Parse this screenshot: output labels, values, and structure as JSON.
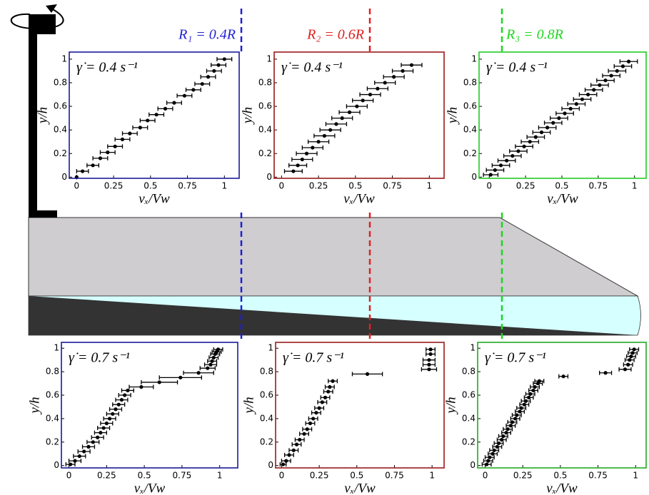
{
  "diagram": {
    "radii": [
      {
        "label": "R₁ = 0.4R",
        "color": "#1f1fd6"
      },
      {
        "label": "R₂ = 0.6R",
        "color": "#e0201f"
      },
      {
        "label": "R₃ = 0.8R",
        "color": "#1fd61f"
      }
    ]
  },
  "chart_data": [
    {
      "type": "scatter",
      "annotation": "γ̇ = 0.4 s⁻¹",
      "xlabel": "vₓ/Vw",
      "ylabel": "y/h",
      "color": "#1a1a9a",
      "xlim": [
        -0.05,
        1.1
      ],
      "ylim": [
        -0.01,
        1.06
      ],
      "xticks": [
        0,
        0.25,
        0.5,
        0.75,
        1
      ],
      "yticks": [
        0,
        0.2,
        0.4,
        0.6,
        0.8,
        1
      ],
      "x": [
        0,
        0.04,
        0.11,
        0.16,
        0.21,
        0.26,
        0.31,
        0.36,
        0.43,
        0.48,
        0.54,
        0.6,
        0.66,
        0.73,
        0.79,
        0.85,
        0.89,
        0.93,
        0.96,
        1
      ],
      "y": [
        0,
        0.05,
        0.1,
        0.16,
        0.21,
        0.26,
        0.32,
        0.37,
        0.42,
        0.48,
        0.53,
        0.58,
        0.63,
        0.69,
        0.74,
        0.79,
        0.85,
        0.9,
        0.95,
        1
      ],
      "xerr": [
        0,
        0.04,
        0.04,
        0.05,
        0.05,
        0.05,
        0.05,
        0.05,
        0.05,
        0.05,
        0.05,
        0.05,
        0.05,
        0.05,
        0.05,
        0.05,
        0.05,
        0.05,
        0.05,
        0.05
      ]
    },
    {
      "type": "scatter",
      "annotation": "γ̇ = 0.4 s⁻¹",
      "xlabel": "vₓ/Vw",
      "ylabel": "y/h",
      "color": "#9a1a1a",
      "xlim": [
        -0.05,
        1.1
      ],
      "ylim": [
        -0.01,
        1.06
      ],
      "xticks": [
        0,
        0.25,
        0.5,
        0.75,
        1
      ],
      "yticks": [
        0,
        0.2,
        0.4,
        0.6,
        0.8,
        1
      ],
      "x": [
        0.08,
        0.11,
        0.14,
        0.17,
        0.21,
        0.25,
        0.29,
        0.33,
        0.37,
        0.41,
        0.46,
        0.51,
        0.55,
        0.6,
        0.65,
        0.7,
        0.76,
        0.82,
        0.88
      ],
      "y": [
        0.05,
        0.1,
        0.15,
        0.2,
        0.25,
        0.3,
        0.35,
        0.4,
        0.45,
        0.5,
        0.55,
        0.6,
        0.65,
        0.7,
        0.75,
        0.8,
        0.85,
        0.9,
        0.95
      ],
      "xerr": [
        0.06,
        0.06,
        0.07,
        0.07,
        0.07,
        0.07,
        0.07,
        0.07,
        0.07,
        0.07,
        0.07,
        0.07,
        0.07,
        0.07,
        0.07,
        0.07,
        0.07,
        0.07,
        0.07
      ]
    },
    {
      "type": "scatter",
      "annotation": "γ̇ = 0.4 s⁻¹",
      "xlabel": "vₓ/Vw",
      "ylabel": "y/h",
      "color": "#22cc22",
      "xlim": [
        -0.07,
        1.08
      ],
      "ylim": [
        -0.01,
        1.06
      ],
      "xticks": [
        0,
        0.25,
        0.5,
        0.75,
        1
      ],
      "yticks": [
        0,
        0.2,
        0.4,
        0.6,
        0.8,
        1
      ],
      "x": [
        0.01,
        0.04,
        0.08,
        0.12,
        0.16,
        0.2,
        0.24,
        0.28,
        0.32,
        0.36,
        0.4,
        0.44,
        0.48,
        0.52,
        0.56,
        0.6,
        0.64,
        0.68,
        0.72,
        0.76,
        0.8,
        0.84,
        0.88,
        0.92,
        0.96
      ],
      "y": [
        0.02,
        0.06,
        0.1,
        0.14,
        0.18,
        0.22,
        0.26,
        0.3,
        0.34,
        0.38,
        0.42,
        0.46,
        0.5,
        0.54,
        0.58,
        0.62,
        0.66,
        0.7,
        0.74,
        0.78,
        0.82,
        0.86,
        0.9,
        0.94,
        0.98
      ],
      "xerr": [
        0.05,
        0.06,
        0.06,
        0.06,
        0.06,
        0.06,
        0.06,
        0.06,
        0.06,
        0.06,
        0.06,
        0.06,
        0.06,
        0.06,
        0.06,
        0.06,
        0.06,
        0.06,
        0.06,
        0.06,
        0.06,
        0.06,
        0.06,
        0.06,
        0.06
      ]
    },
    {
      "type": "scatter",
      "annotation": "γ̇ = 0.7 s⁻¹",
      "xlabel": "vₓ/Vw",
      "ylabel": "y/h",
      "color": "#1a1a9a",
      "xlim": [
        -0.05,
        1.12
      ],
      "ylim": [
        -0.02,
        1.05
      ],
      "xticks": [
        0,
        0.25,
        0.5,
        0.75,
        1
      ],
      "yticks": [
        0,
        0.2,
        0.4,
        0.6,
        0.8,
        1
      ],
      "x": [
        0.01,
        0.04,
        0.07,
        0.1,
        0.13,
        0.16,
        0.19,
        0.21,
        0.23,
        0.25,
        0.27,
        0.29,
        0.31,
        0.33,
        0.35,
        0.37,
        0.39,
        0.48,
        0.6,
        0.74,
        0.86,
        0.92,
        0.94,
        0.95,
        0.96,
        0.97,
        0.98,
        0.99
      ],
      "y": [
        0.01,
        0.04,
        0.08,
        0.12,
        0.16,
        0.2,
        0.24,
        0.28,
        0.32,
        0.36,
        0.4,
        0.44,
        0.48,
        0.52,
        0.56,
        0.6,
        0.64,
        0.67,
        0.71,
        0.75,
        0.79,
        0.83,
        0.86,
        0.89,
        0.92,
        0.95,
        0.97,
        0.99
      ],
      "xerr": [
        0.03,
        0.04,
        0.04,
        0.04,
        0.04,
        0.04,
        0.04,
        0.04,
        0.04,
        0.04,
        0.04,
        0.04,
        0.04,
        0.04,
        0.04,
        0.04,
        0.04,
        0.08,
        0.12,
        0.14,
        0.1,
        0.05,
        0.04,
        0.03,
        0.03,
        0.03,
        0.03,
        0.03
      ]
    },
    {
      "type": "scatter",
      "annotation": "γ̇ = 0.7 s⁻¹",
      "xlabel": "vₓ/Vw",
      "ylabel": "y/h",
      "color": "#9a1a1a",
      "xlim": [
        -0.04,
        1.08
      ],
      "ylim": [
        -0.02,
        1.05
      ],
      "xticks": [
        0,
        0.25,
        0.5,
        0.75,
        1
      ],
      "yticks": [
        0,
        0.2,
        0.4,
        0.6,
        0.8,
        1
      ],
      "x": [
        0.01,
        0.03,
        0.05,
        0.08,
        0.1,
        0.12,
        0.15,
        0.17,
        0.19,
        0.21,
        0.23,
        0.25,
        0.27,
        0.29,
        0.31,
        0.32,
        0.34,
        0.57,
        0.98,
        0.98,
        0.98,
        0.99,
        0.99
      ],
      "y": [
        0.01,
        0.04,
        0.09,
        0.13,
        0.18,
        0.22,
        0.27,
        0.31,
        0.36,
        0.4,
        0.45,
        0.49,
        0.54,
        0.58,
        0.63,
        0.67,
        0.72,
        0.78,
        0.82,
        0.86,
        0.9,
        0.95,
        0.99
      ],
      "xerr": [
        0.02,
        0.03,
        0.03,
        0.03,
        0.03,
        0.03,
        0.03,
        0.03,
        0.03,
        0.03,
        0.03,
        0.03,
        0.03,
        0.03,
        0.03,
        0.03,
        0.03,
        0.1,
        0.05,
        0.04,
        0.04,
        0.03,
        0.03
      ]
    },
    {
      "type": "scatter",
      "annotation": "γ̇ = 0.7 s⁻¹",
      "xlabel": "vₓ/Vw",
      "ylabel": "y/h",
      "color": "#22aa22",
      "xlim": [
        -0.05,
        1.07
      ],
      "ylim": [
        -0.02,
        1.05
      ],
      "xticks": [
        0,
        0.25,
        0.5,
        0.75,
        1
      ],
      "yticks": [
        0,
        0.2,
        0.4,
        0.6,
        0.8,
        1
      ],
      "x": [
        0.01,
        0.02,
        0.03,
        0.05,
        0.06,
        0.08,
        0.09,
        0.11,
        0.12,
        0.14,
        0.15,
        0.17,
        0.18,
        0.2,
        0.21,
        0.23,
        0.24,
        0.26,
        0.27,
        0.29,
        0.3,
        0.32,
        0.33,
        0.35,
        0.36,
        0.52,
        0.8,
        0.93,
        0.95,
        0.96,
        0.97,
        0.98,
        0.99
      ],
      "y": [
        0.01,
        0.04,
        0.07,
        0.1,
        0.13,
        0.16,
        0.19,
        0.22,
        0.25,
        0.28,
        0.31,
        0.34,
        0.37,
        0.4,
        0.43,
        0.46,
        0.49,
        0.52,
        0.55,
        0.58,
        0.61,
        0.64,
        0.67,
        0.7,
        0.72,
        0.76,
        0.79,
        0.82,
        0.86,
        0.9,
        0.93,
        0.96,
        0.99
      ],
      "xerr": [
        0.03,
        0.03,
        0.03,
        0.03,
        0.03,
        0.03,
        0.03,
        0.03,
        0.03,
        0.03,
        0.03,
        0.03,
        0.03,
        0.03,
        0.03,
        0.03,
        0.03,
        0.03,
        0.03,
        0.03,
        0.03,
        0.03,
        0.03,
        0.03,
        0.03,
        0.03,
        0.04,
        0.04,
        0.03,
        0.03,
        0.03,
        0.03,
        0.03
      ]
    }
  ]
}
